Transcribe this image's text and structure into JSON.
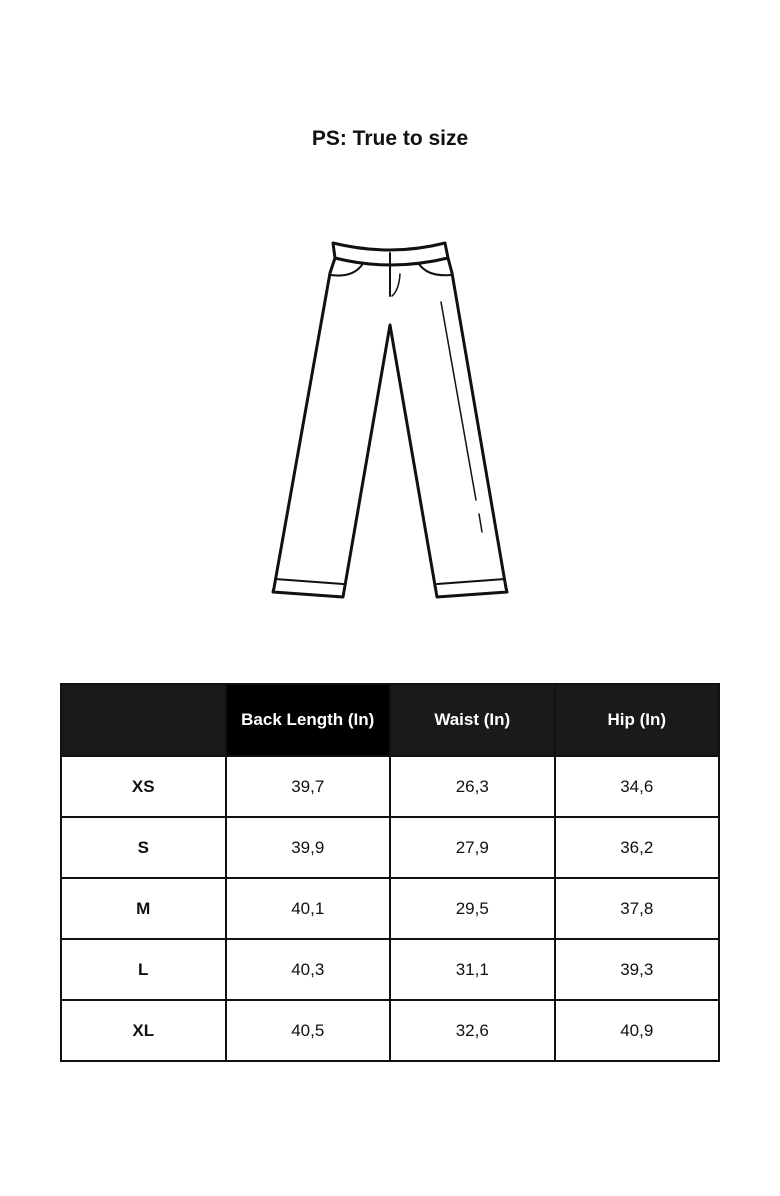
{
  "title": "PS: True to size",
  "illustration": "pants-outline-icon",
  "table": {
    "headers": [
      "",
      "Back Length (In)",
      "Waist (In)",
      "Hip (In)"
    ],
    "rows": [
      {
        "size": "XS",
        "back_length": "39,7",
        "waist": "26,3",
        "hip": "34,6"
      },
      {
        "size": "S",
        "back_length": "39,9",
        "waist": "27,9",
        "hip": "36,2"
      },
      {
        "size": "M",
        "back_length": "40,1",
        "waist": "29,5",
        "hip": "37,8"
      },
      {
        "size": "L",
        "back_length": "40,3",
        "waist": "31,1",
        "hip": "39,3"
      },
      {
        "size": "XL",
        "back_length": "40,5",
        "waist": "32,6",
        "hip": "40,9"
      }
    ]
  },
  "colors": {
    "header_bg": "#1a1a1a",
    "highlight_header_bg": "#000000",
    "text": "#111111"
  }
}
